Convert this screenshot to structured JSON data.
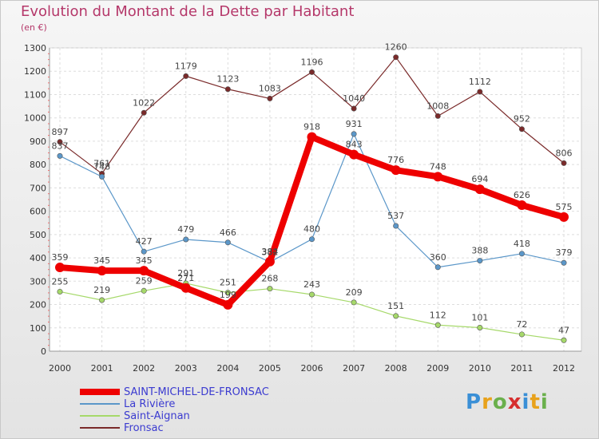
{
  "title": "Evolution du Montant de la Dette par Habitant",
  "unit_label": "(en €)",
  "logo": {
    "letters": [
      "P",
      "r",
      "o",
      "x",
      "i",
      "t",
      "i"
    ],
    "colors": [
      "#3a8fd6",
      "#e8a21c",
      "#6ab04c",
      "#d62f2f",
      "#3a8fd6",
      "#e8a21c",
      "#6ab04c"
    ]
  },
  "chart_data": {
    "type": "line",
    "x": [
      "2000",
      "2001",
      "2002",
      "2003",
      "2004",
      "2005",
      "2006",
      "2007",
      "2008",
      "2009",
      "2010",
      "2011",
      "2012"
    ],
    "ylim": [
      0,
      1300
    ],
    "yticks": [
      "0",
      "100",
      "200",
      "300",
      "400",
      "500",
      "600",
      "700",
      "800",
      "900",
      "1000",
      "1100",
      "1200",
      "1300"
    ],
    "grid": true,
    "legend": "bottom-left",
    "series": [
      {
        "name": "SAINT-MICHEL-DE-FRONSAC",
        "color": "#ee0000",
        "values": [
          359,
          345,
          345,
          271,
          199,
          384,
          918,
          843,
          776,
          748,
          694,
          626,
          575
        ]
      },
      {
        "name": "La Rivière",
        "color": "#5b97c9",
        "values": [
          837,
          748,
          427,
          479,
          466,
          382,
          480,
          931,
          537,
          360,
          388,
          418,
          379
        ]
      },
      {
        "name": "Saint-Aignan",
        "color": "#a6d96a",
        "values": [
          255,
          219,
          259,
          291,
          251,
          268,
          243,
          209,
          151,
          112,
          101,
          72,
          47
        ]
      },
      {
        "name": "Fronsac",
        "color": "#7a2a2a",
        "values": [
          897,
          761,
          1022,
          1179,
          1123,
          1083,
          1196,
          1040,
          1260,
          1008,
          1112,
          952,
          806
        ]
      }
    ]
  }
}
